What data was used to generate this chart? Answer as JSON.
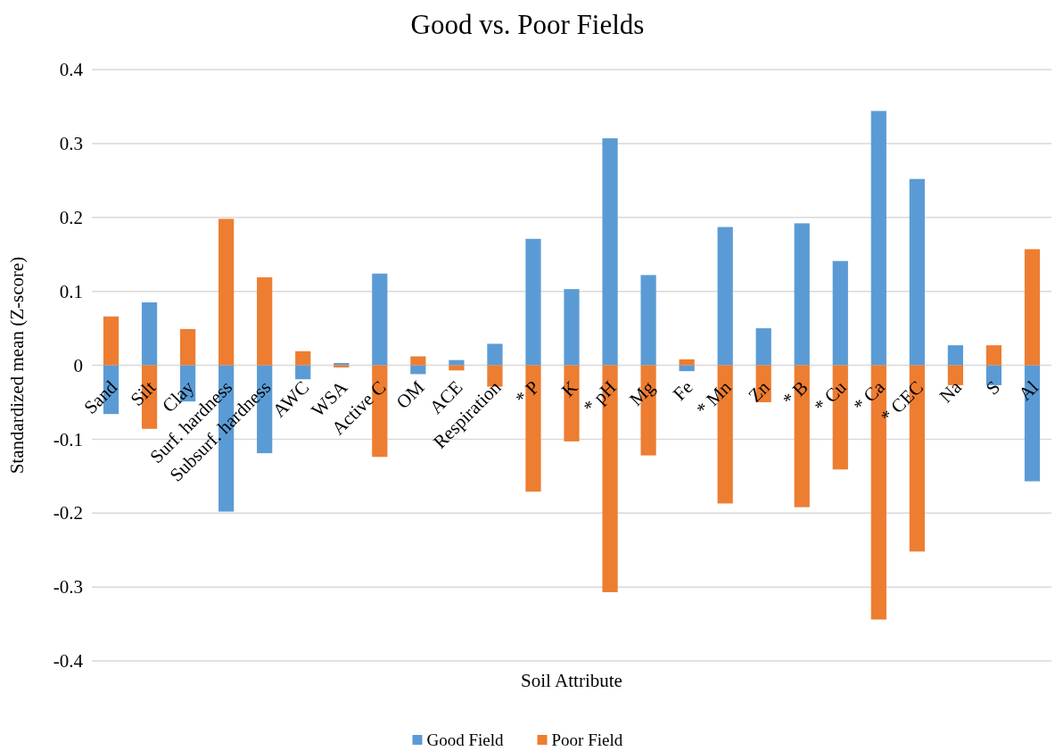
{
  "chart_data": {
    "type": "bar",
    "title": "Good vs. Poor Fields",
    "xlabel": "Soil Attribute",
    "ylabel": "Standardized mean (Z-score)",
    "categories": [
      "Sand",
      "Silt",
      "Clay",
      "Surf. hardness",
      "Subsurf. hardness",
      "AWC",
      "WSA",
      "Active C",
      "OM",
      "ACE",
      "Respiration",
      "* P",
      "K",
      "* pH",
      "Mg",
      "Fe",
      "* Mn",
      "Zn",
      "* B",
      "* Cu",
      "* Ca",
      "* CEC",
      "Na",
      "S",
      "Al"
    ],
    "series": [
      {
        "name": "Good Field",
        "color": "#5b9bd5",
        "values": [
          -0.066,
          0.085,
          -0.049,
          -0.198,
          -0.119,
          -0.019,
          0.003,
          0.124,
          -0.012,
          0.007,
          0.029,
          0.171,
          0.103,
          0.307,
          0.122,
          -0.008,
          0.187,
          0.05,
          0.192,
          0.141,
          0.344,
          0.252,
          0.027,
          -0.027,
          -0.157
        ]
      },
      {
        "name": "Poor Field",
        "color": "#ed7d31",
        "values": [
          0.066,
          -0.086,
          0.049,
          0.198,
          0.119,
          0.019,
          -0.003,
          -0.124,
          0.012,
          -0.007,
          -0.029,
          -0.171,
          -0.103,
          -0.307,
          -0.122,
          0.008,
          -0.187,
          -0.05,
          -0.192,
          -0.141,
          -0.344,
          -0.252,
          -0.027,
          0.027,
          0.157
        ]
      }
    ],
    "ylim": [
      -0.4,
      0.4
    ],
    "yticks": [
      -0.4,
      -0.3,
      -0.2,
      -0.1,
      0,
      0.1,
      0.2,
      0.3,
      0.4
    ],
    "grid": "y",
    "legend": "bottom",
    "stacked": true
  }
}
